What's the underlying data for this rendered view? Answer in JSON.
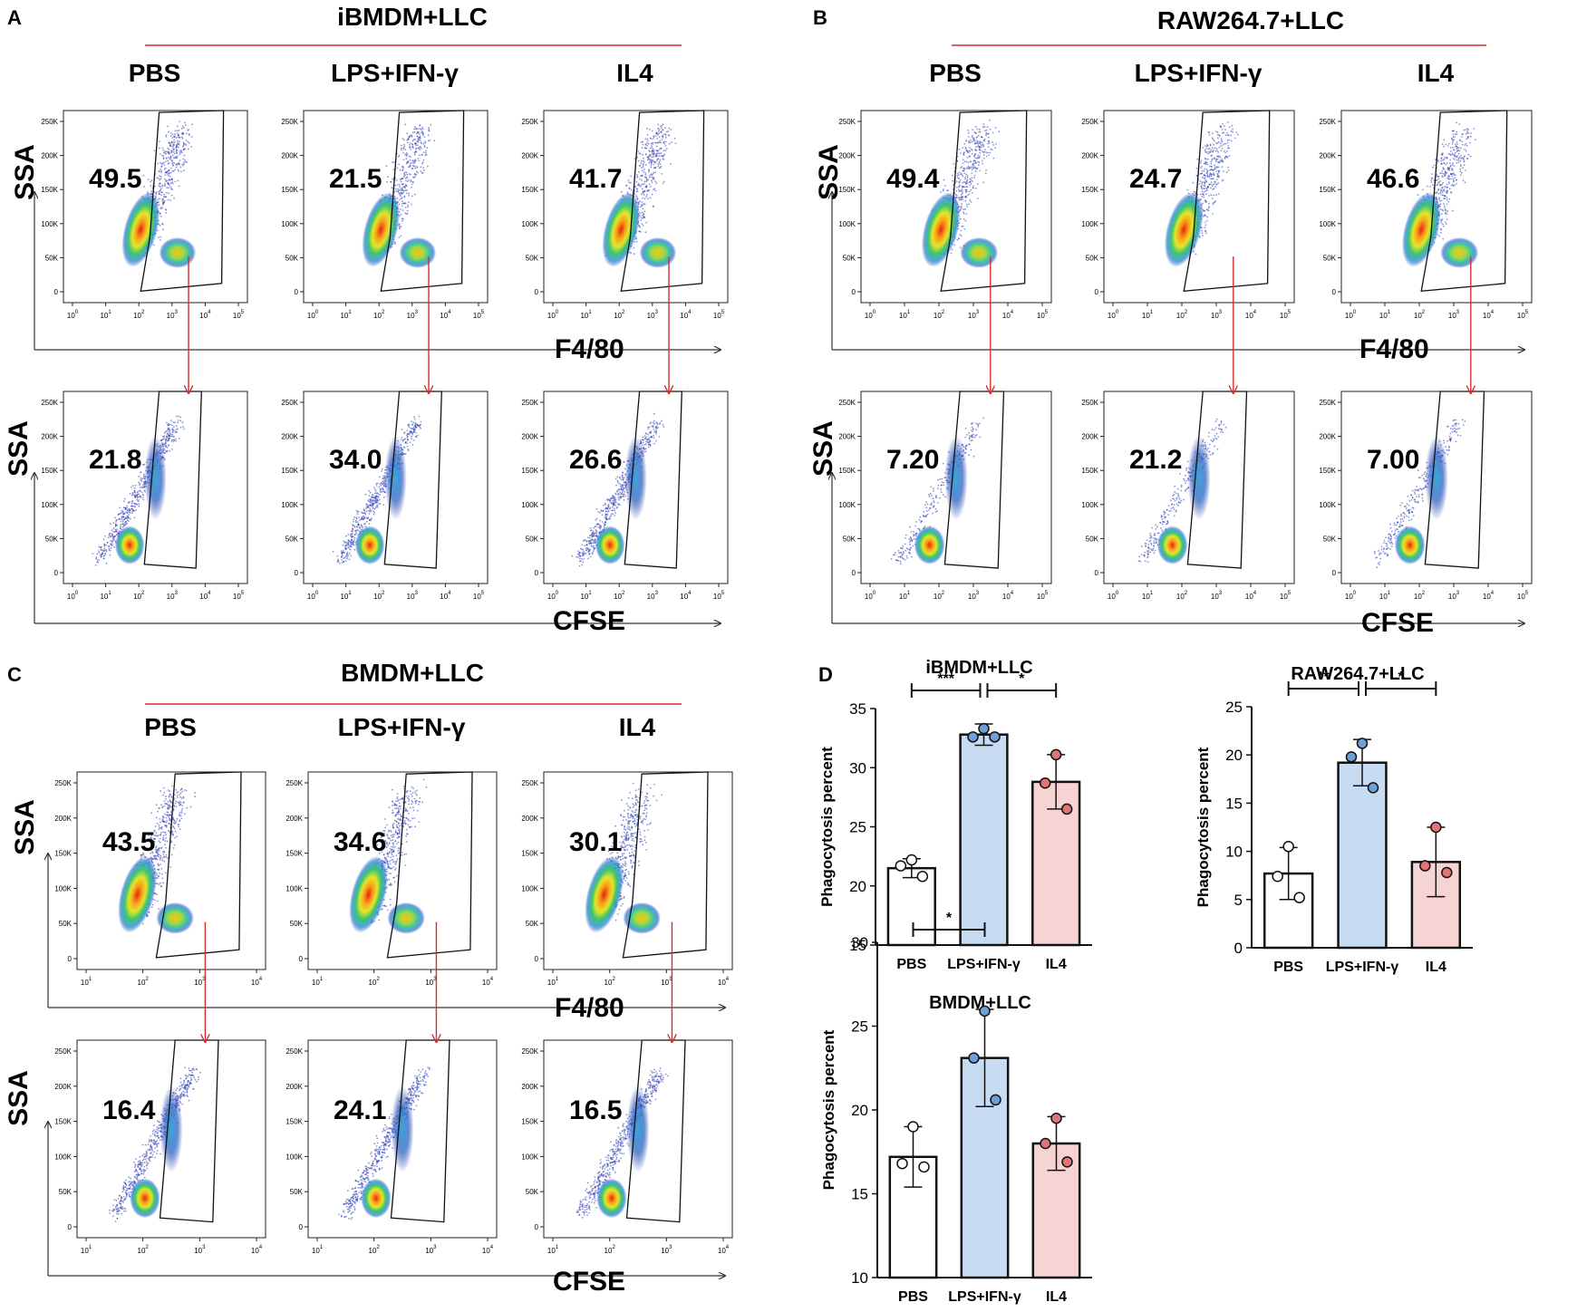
{
  "panels": {
    "A": {
      "letter": "A",
      "title": "iBMDM+LLC",
      "groups": [
        "PBS",
        "LPS+IFN-γ",
        "IL4"
      ],
      "row1_values": [
        "49.5",
        "21.5",
        "41.7"
      ],
      "row2_values": [
        "21.8",
        "34.0",
        "26.6"
      ],
      "y_label": "SSA",
      "row1_x_label": "F4/80",
      "row2_x_label": "CFSE"
    },
    "B": {
      "letter": "B",
      "title": "RAW264.7+LLC",
      "groups": [
        "PBS",
        "LPS+IFN-γ",
        "IL4"
      ],
      "row1_values": [
        "49.4",
        "24.7",
        "46.6"
      ],
      "row2_values": [
        "7.20",
        "21.2",
        "7.00"
      ],
      "y_label": "SSA",
      "row1_x_label": "F4/80",
      "row2_x_label": "CFSE"
    },
    "C": {
      "letter": "C",
      "title": "BMDM+LLC",
      "groups": [
        "PBS",
        "LPS+IFN-γ",
        "IL4"
      ],
      "row1_values": [
        "43.5",
        "34.6",
        "30.1"
      ],
      "row2_values": [
        "16.4",
        "24.1",
        "16.5"
      ],
      "y_label": "SSA",
      "row1_x_label": "F4/80",
      "row2_x_label": "CFSE"
    },
    "D": {
      "letter": "D"
    }
  },
  "flow_axes": {
    "y_ticks": [
      "0",
      "50K",
      "100K",
      "150K",
      "200K",
      "250K"
    ],
    "x_ticks_ab": [
      "0",
      "1",
      "2",
      "3",
      "4",
      "5"
    ],
    "x_ticks_c": [
      "1",
      "2",
      "3",
      "4"
    ]
  },
  "chart_data": [
    {
      "type": "bar",
      "title": "iBMDM+LLC",
      "categories": [
        "PBS",
        "LPS+IFN-γ",
        "IL4"
      ],
      "values": [
        21.5,
        32.8,
        28.8
      ],
      "error": [
        0.8,
        0.9,
        2.3
      ],
      "points": [
        [
          22.2,
          21.7,
          20.8
        ],
        [
          33.3,
          32.6,
          32.6
        ],
        [
          31.1,
          28.7,
          26.5
        ]
      ],
      "ylabel": "Phagocytosis percent",
      "ylim": [
        15,
        35
      ],
      "yticks": [
        15,
        20,
        25,
        30,
        35
      ],
      "bar_colors": [
        "#ffffff",
        "#c7dcf2",
        "#f7d4d4"
      ],
      "point_colors": [
        "#ffffff",
        "#6f9fd8",
        "#e17575"
      ],
      "significance": [
        {
          "from": 0,
          "to": 1,
          "label": "***"
        },
        {
          "from": 1,
          "to": 2,
          "label": "*"
        }
      ]
    },
    {
      "type": "bar",
      "title": "RAW264.7+LLC",
      "categories": [
        "PBS",
        "LPS+IFN-γ",
        "IL4"
      ],
      "values": [
        7.7,
        19.2,
        8.9
      ],
      "error": [
        2.7,
        2.4,
        3.6
      ],
      "points": [
        [
          10.5,
          7.4,
          5.2
        ],
        [
          21.2,
          19.8,
          16.6
        ],
        [
          12.5,
          8.5,
          7.8
        ]
      ],
      "ylabel": "Phagocytosis percent",
      "ylim": [
        0,
        25
      ],
      "yticks": [
        0,
        5,
        10,
        15,
        20,
        25
      ],
      "bar_colors": [
        "#ffffff",
        "#c7dcf2",
        "#f7d4d4"
      ],
      "point_colors": [
        "#ffffff",
        "#6f9fd8",
        "#e17575"
      ],
      "significance": [
        {
          "from": 0,
          "to": 1,
          "label": "**"
        },
        {
          "from": 1,
          "to": 2,
          "label": "*"
        }
      ]
    },
    {
      "type": "bar",
      "title": "BMDM+LLC",
      "categories": [
        "PBS",
        "LPS+IFN-γ",
        "IL4"
      ],
      "values": [
        17.2,
        23.1,
        18.0
      ],
      "error": [
        1.8,
        2.9,
        1.6
      ],
      "points": [
        [
          19.0,
          16.8,
          16.6
        ],
        [
          25.9,
          23.1,
          20.6
        ],
        [
          19.5,
          18.0,
          16.9
        ]
      ],
      "ylabel": "Phagocytosis percent",
      "ylim": [
        10,
        30
      ],
      "yticks": [
        10,
        15,
        20,
        25,
        30
      ],
      "bar_colors": [
        "#ffffff",
        "#c7dcf2",
        "#f7d4d4"
      ],
      "point_colors": [
        "#ffffff",
        "#6f9fd8",
        "#e17575"
      ],
      "significance": [
        {
          "from": 0,
          "to": 1,
          "label": "*"
        }
      ]
    }
  ]
}
